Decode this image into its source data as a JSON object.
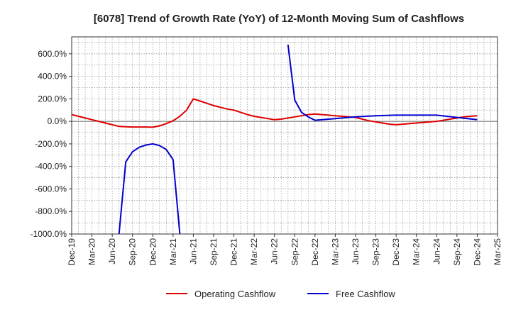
{
  "chart_data": {
    "type": "line",
    "title": "[6078]  Trend of Growth Rate (YoY) of 12-Month Moving Sum of Cashflows",
    "xlabel": "",
    "ylabel": "",
    "ylim": [
      -1000,
      750
    ],
    "y_ticks": [
      {
        "value": 600,
        "label": "600.0%"
      },
      {
        "value": 400,
        "label": "400.0%"
      },
      {
        "value": 200,
        "label": "200.0%"
      },
      {
        "value": 0,
        "label": "0.0%"
      },
      {
        "value": -200,
        "label": "-200.0%"
      },
      {
        "value": -400,
        "label": "-400.0%"
      },
      {
        "value": -600,
        "label": "-600.0%"
      },
      {
        "value": -800,
        "label": "-800.0%"
      },
      {
        "value": -1000,
        "label": "-1000.0%"
      }
    ],
    "x_ticks": [
      "Dec-19",
      "Mar-20",
      "Jun-20",
      "Sep-20",
      "Dec-20",
      "Mar-21",
      "Jun-21",
      "Sep-21",
      "Dec-21",
      "Mar-22",
      "Jun-22",
      "Sep-22",
      "Dec-22",
      "Mar-23",
      "Jun-23",
      "Sep-23",
      "Dec-23",
      "Mar-24",
      "Jun-24",
      "Sep-24",
      "Dec-24",
      "Mar-25"
    ],
    "grid": true,
    "legend_position": "bottom",
    "series": [
      {
        "name": "Operating Cashflow",
        "color": "#dd0000",
        "points": [
          [
            "2019-12",
            60
          ],
          [
            "2020-01",
            45
          ],
          [
            "2020-02",
            30
          ],
          [
            "2020-03",
            15
          ],
          [
            "2020-04",
            0
          ],
          [
            "2020-05",
            -15
          ],
          [
            "2020-06",
            -30
          ],
          [
            "2020-07",
            -45
          ],
          [
            "2020-08",
            -48
          ],
          [
            "2020-09",
            -50
          ],
          [
            "2020-10",
            -50
          ],
          [
            "2020-11",
            -50
          ],
          [
            "2020-12",
            -52
          ],
          [
            "2021-01",
            -40
          ],
          [
            "2021-02",
            -20
          ],
          [
            "2021-03",
            5
          ],
          [
            "2021-04",
            45
          ],
          [
            "2021-05",
            100
          ],
          [
            "2021-06",
            200
          ],
          [
            "2021-07",
            180
          ],
          [
            "2021-08",
            160
          ],
          [
            "2021-09",
            140
          ],
          [
            "2021-10",
            125
          ],
          [
            "2021-11",
            110
          ],
          [
            "2021-12",
            100
          ],
          [
            "2022-01",
            80
          ],
          [
            "2022-02",
            60
          ],
          [
            "2022-03",
            45
          ],
          [
            "2022-04",
            35
          ],
          [
            "2022-05",
            25
          ],
          [
            "2022-06",
            15
          ],
          [
            "2022-07",
            20
          ],
          [
            "2022-08",
            30
          ],
          [
            "2022-09",
            40
          ],
          [
            "2022-10",
            50
          ],
          [
            "2022-11",
            60
          ],
          [
            "2022-12",
            65
          ],
          [
            "2023-01",
            60
          ],
          [
            "2023-02",
            55
          ],
          [
            "2023-03",
            50
          ],
          [
            "2023-04",
            45
          ],
          [
            "2023-05",
            40
          ],
          [
            "2023-06",
            35
          ],
          [
            "2023-07",
            20
          ],
          [
            "2023-08",
            5
          ],
          [
            "2023-09",
            -5
          ],
          [
            "2023-10",
            -15
          ],
          [
            "2023-11",
            -25
          ],
          [
            "2023-12",
            -30
          ],
          [
            "2024-01",
            -25
          ],
          [
            "2024-02",
            -20
          ],
          [
            "2024-03",
            -15
          ],
          [
            "2024-04",
            -10
          ],
          [
            "2024-05",
            -5
          ],
          [
            "2024-06",
            0
          ],
          [
            "2024-07",
            10
          ],
          [
            "2024-08",
            20
          ],
          [
            "2024-09",
            30
          ],
          [
            "2024-10",
            40
          ],
          [
            "2024-11",
            45
          ],
          [
            "2024-12",
            50
          ]
        ]
      },
      {
        "name": "Free Cashflow",
        "color": "#0000cc",
        "segments": [
          [
            [
              "2020-07",
              -1000
            ],
            [
              "2020-08",
              -360
            ],
            [
              "2020-09",
              -270
            ],
            [
              "2020-10",
              -230
            ],
            [
              "2020-11",
              -210
            ],
            [
              "2020-12",
              -200
            ],
            [
              "2021-01",
              -215
            ],
            [
              "2021-02",
              -250
            ],
            [
              "2021-03",
              -340
            ],
            [
              "2021-04",
              -1000
            ]
          ],
          [
            [
              "2022-08",
              680
            ],
            [
              "2022-09",
              190
            ],
            [
              "2022-10",
              80
            ],
            [
              "2022-11",
              40
            ],
            [
              "2022-12",
              10
            ],
            [
              "2023-03",
              25
            ],
            [
              "2023-06",
              40
            ],
            [
              "2023-09",
              50
            ],
            [
              "2023-12",
              55
            ],
            [
              "2024-03",
              55
            ],
            [
              "2024-06",
              55
            ],
            [
              "2024-09",
              35
            ],
            [
              "2024-12",
              15
            ]
          ]
        ]
      }
    ]
  }
}
